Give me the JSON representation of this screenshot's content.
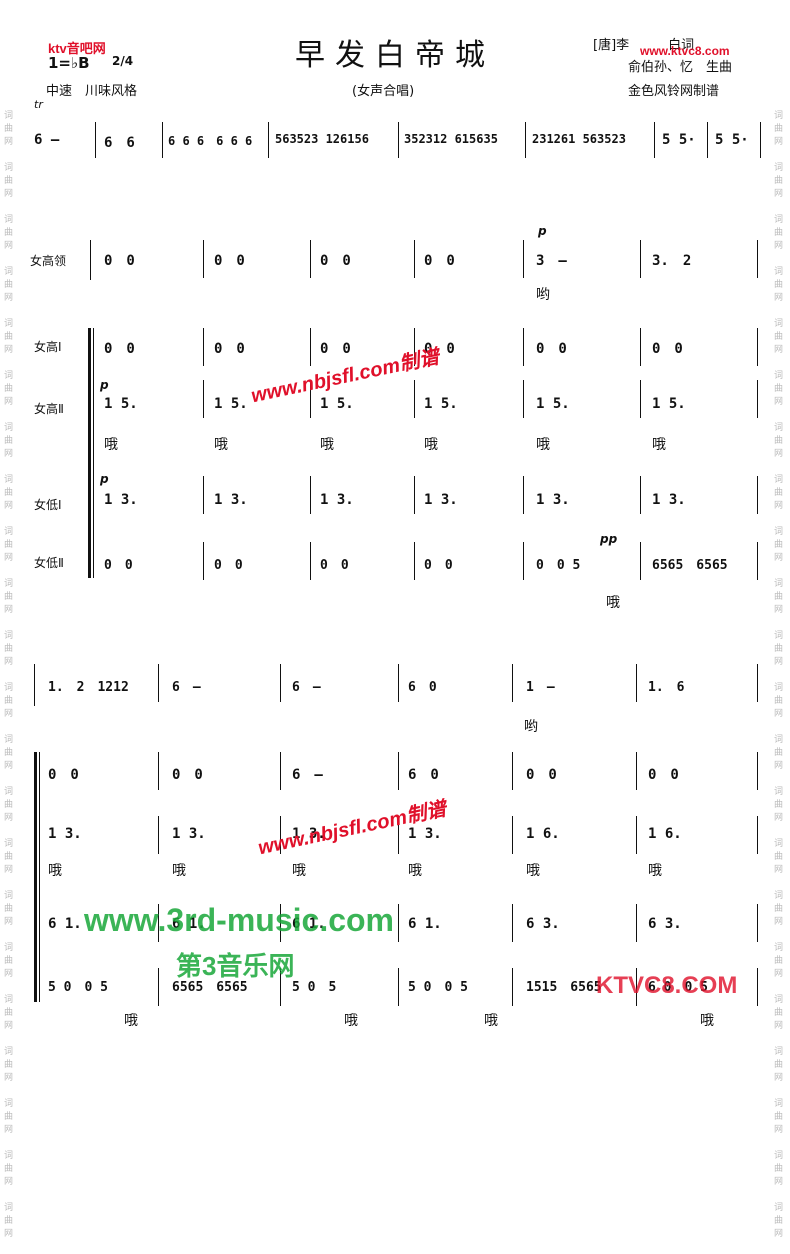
{
  "header": {
    "title": "早发白帝城",
    "key": "1=♭B",
    "time": "2/4",
    "tempo_style": "中速　川味风格",
    "subtitle": "(女声合唱)",
    "lyricist": "[唐]李　　　白词",
    "composer": "俞伯孙、忆　生曲",
    "engraver": "金色风铃网制谱",
    "watermark_top_left": "ktv音吧网",
    "watermark_top_right": "www.ktvc8.com",
    "trill": "tr"
  },
  "side_text": "词曲网",
  "intro": {
    "measures": [
      "6 —",
      "6　6",
      "6 6 6　6 6 6",
      "563523 126156",
      "352312 615635",
      "231261 563523",
      "5 5·",
      "5 5·"
    ]
  },
  "parts": {
    "soprano_lead": "女高领",
    "soprano1": "女高Ⅰ",
    "soprano2": "女高Ⅱ",
    "alto1": "女低Ⅰ",
    "alto2": "女低Ⅱ"
  },
  "system1": {
    "soprano_lead": [
      "0　0",
      "0　0",
      "0　0",
      "0　0",
      "3　—",
      "3.　2"
    ],
    "soprano_lead_dyn": "p",
    "soprano_lead_lyric": "哟",
    "soprano1": [
      "0　0",
      "0　0",
      "0　0",
      "0　0",
      "0　0",
      "0　0"
    ],
    "soprano2": [
      "1 5.",
      "1 5.",
      "1 5.",
      "1 5.",
      "1 5.",
      "1 5."
    ],
    "soprano2_dyn": "p",
    "soprano2_lyrics": [
      "哦",
      "哦",
      "哦",
      "哦",
      "哦",
      "哦"
    ],
    "alto1": [
      "1 3.",
      "1 3.",
      "1 3.",
      "1 3.",
      "1 3.",
      "1 3."
    ],
    "alto1_dyn": "p",
    "alto2": [
      "0　0",
      "0　0",
      "0　0",
      "0　0",
      "0　0 5",
      "6565　6565"
    ],
    "alto2_dyn": "pp",
    "alto2_lyric": "哦"
  },
  "system2": {
    "soprano_lead": [
      "1.　2　1212",
      "6　—",
      "6　—",
      "6　0",
      "1　—",
      "1.　6"
    ],
    "soprano_lead_lyric": "哟",
    "soprano1": [
      "0　0",
      "0　0",
      "6　—",
      "6　0",
      "0　0",
      "0　0"
    ],
    "soprano2": [
      "1 3.",
      "1 3.",
      "1 3.",
      "1 3.",
      "1 6.",
      "1 6."
    ],
    "soprano2_lyrics": [
      "哦",
      "哦",
      "哦",
      "哦",
      "哦",
      "哦"
    ],
    "alto1": [
      "6 1.",
      "6 1.",
      "6 1.",
      "6 1.",
      "6 3.",
      "6 3."
    ],
    "alto2": [
      "5 0　0 5",
      "6565　6565",
      "5 0　5",
      "5 0　0 5",
      "1515　6565",
      "6 0　0 5"
    ],
    "alto2_lyrics": [
      "哦",
      "哦",
      "哦",
      "哦"
    ]
  },
  "watermarks": {
    "nbjsfl": "www.nbjsfl.com制谱",
    "third_music": "www.3rd-music.com",
    "third_music_cn": "第3音乐网",
    "ktvc8": "KTVC8.COM"
  },
  "colors": {
    "ink": "#111111",
    "red": "#e0102a",
    "green": "#1aa83a"
  }
}
